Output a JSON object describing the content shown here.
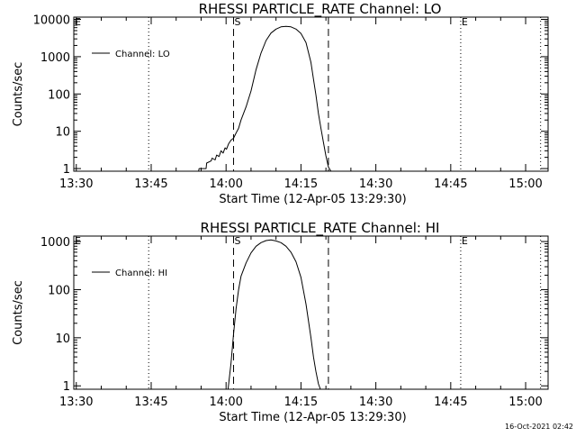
{
  "footer": {
    "timestamp": "16-Oct-2021 02:42"
  },
  "x_ticks": [
    {
      "t": 0,
      "label": "13:30"
    },
    {
      "t": 15,
      "label": "13:45"
    },
    {
      "t": 30,
      "label": "14:00"
    },
    {
      "t": 45,
      "label": "14:15"
    },
    {
      "t": 60,
      "label": "14:30"
    },
    {
      "t": 75,
      "label": "14:45"
    },
    {
      "t": 90,
      "label": "15:00"
    }
  ],
  "chart_data": [
    {
      "type": "line",
      "title": "RHESSI PARTICLE_RATE Channel: LO",
      "xlabel": "Start Time (12-Apr-05 13:29:30)",
      "ylabel": "Counts/sec",
      "x_unit": "minutes after 13:30 (12-Apr-05)",
      "xlim": [
        -0.5,
        94.5
      ],
      "ylog": true,
      "ylim": [
        0.85,
        11500
      ],
      "y_ticks": [
        {
          "v": 1,
          "label": "1"
        },
        {
          "v": 10,
          "label": "10"
        },
        {
          "v": 100,
          "label": "100"
        },
        {
          "v": 1000,
          "label": "1000"
        },
        {
          "v": 10000,
          "label": "10000"
        }
      ],
      "legend": {
        "label": "Channel: LO",
        "position": "top-left"
      },
      "markers": [
        {
          "t": 14.5,
          "style": "dotted",
          "label": ""
        },
        {
          "t": 31.5,
          "style": "dashed",
          "label": "S"
        },
        {
          "t": 50.5,
          "style": "dashed",
          "label": ""
        },
        {
          "t": 77,
          "style": "dotted",
          "label": "E"
        },
        {
          "t": 93,
          "style": "dotted",
          "label": ""
        },
        {
          "t": -0.5,
          "style": "none",
          "label": "E"
        }
      ],
      "series": [
        {
          "name": "Channel: LO",
          "x": [
            23.0,
            24.5,
            24.6,
            26.0,
            26.1,
            27.0,
            27.2,
            27.8,
            28.1,
            28.6,
            29.0,
            29.4,
            29.8,
            30.1,
            30.5,
            31.0,
            31.5,
            32.0,
            32.5,
            33.0,
            34.0,
            35.0,
            36.0,
            37.0,
            38.0,
            39.0,
            40.0,
            41.0,
            42.0,
            43.0,
            44.0,
            45.0,
            46.0,
            47.0,
            47.5,
            48.0,
            48.5,
            49.0,
            49.5,
            50.0,
            50.5,
            51.0
          ],
          "y": [
            0.85,
            0.85,
            1.0,
            1.0,
            1.4,
            1.6,
            1.9,
            1.7,
            2.3,
            2.1,
            3.0,
            2.6,
            3.6,
            3.3,
            4.6,
            5.8,
            6.5,
            9.0,
            12,
            20,
            45,
            120,
            450,
            1250,
            2700,
            4300,
            5500,
            6300,
            6500,
            6300,
            5500,
            4200,
            2400,
            700,
            250,
            95,
            30,
            12,
            5,
            2.2,
            1.1,
            0.85
          ]
        }
      ]
    },
    {
      "type": "line",
      "title": "RHESSI PARTICLE_RATE Channel: HI",
      "xlabel": "Start Time (12-Apr-05 13:29:30)",
      "ylabel": "Counts/sec",
      "x_unit": "minutes after 13:30 (12-Apr-05)",
      "xlim": [
        -0.5,
        94.5
      ],
      "ylog": true,
      "ylim": [
        0.85,
        1300
      ],
      "y_ticks": [
        {
          "v": 1,
          "label": "1"
        },
        {
          "v": 10,
          "label": "10"
        },
        {
          "v": 100,
          "label": "100"
        },
        {
          "v": 1000,
          "label": "1000"
        }
      ],
      "legend": {
        "label": "Channel: HI",
        "position": "top-left"
      },
      "markers": [
        {
          "t": 14.5,
          "style": "dotted",
          "label": ""
        },
        {
          "t": 31.5,
          "style": "dashed",
          "label": "S"
        },
        {
          "t": 50.5,
          "style": "dashed",
          "label": ""
        },
        {
          "t": 77,
          "style": "dotted",
          "label": "E"
        },
        {
          "t": 93,
          "style": "dotted",
          "label": ""
        },
        {
          "t": -0.5,
          "style": "none",
          "label": "E"
        }
      ],
      "series": [
        {
          "name": "Channel: HI",
          "x": [
            30.4,
            31.0,
            31.5,
            32.0,
            32.5,
            33.0,
            34.0,
            35.0,
            36.0,
            37.0,
            38.0,
            39.0,
            40.0,
            41.0,
            42.0,
            43.0,
            44.0,
            45.0,
            46.0,
            47.0,
            47.5,
            48.0,
            48.5,
            48.9
          ],
          "y": [
            0.85,
            3.0,
            12,
            40,
            100,
            190,
            360,
            580,
            800,
            950,
            1050,
            1080,
            1030,
            950,
            800,
            600,
            380,
            180,
            50,
            10,
            4,
            2,
            1.1,
            0.85
          ]
        }
      ]
    }
  ]
}
